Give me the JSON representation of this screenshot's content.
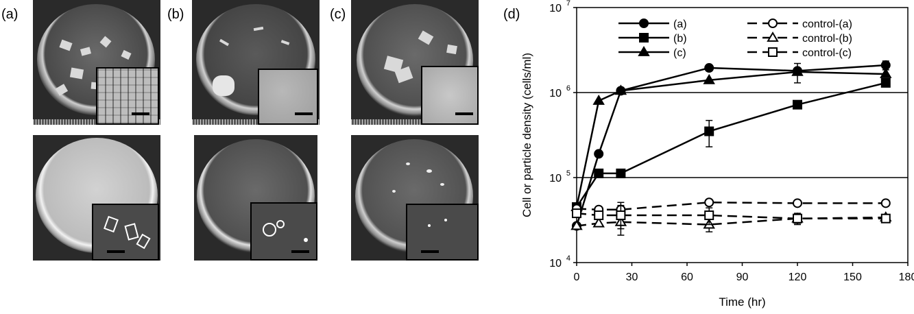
{
  "panels": {
    "a": "(a)",
    "b": "(b)",
    "c": "(c)",
    "d": "(d)"
  },
  "photo_icons": {
    "top": "petri-dish-with-gel-photo",
    "bottom": "petri-dish-control-photo",
    "inset": "microscope-inset"
  },
  "chart_data": {
    "type": "line",
    "xlabel": "Time (hr)",
    "ylabel": "Cell or particle density (cells/ml)",
    "xlim": [
      0,
      180
    ],
    "x_ticks": [
      "0",
      "30",
      "60",
      "90",
      "120",
      "150",
      "180"
    ],
    "y_scale": "log",
    "ylim": [
      10000,
      10000000
    ],
    "y_tick_base": "10",
    "y_tick_exponents": [
      "4",
      "5",
      "6",
      "7"
    ],
    "grid": "horizontal lines at 10^5 and 10^6",
    "legend_placement": "top",
    "series": [
      {
        "name": "(a)",
        "marker": "filled-circle",
        "line": "solid",
        "x": [
          0,
          12,
          24,
          72,
          120,
          168
        ],
        "y": [
          27000,
          190000,
          1050000,
          1950000,
          1800000,
          2100000
        ],
        "err": [
          0,
          0,
          0,
          0,
          0,
          250000
        ]
      },
      {
        "name": "(b)",
        "marker": "filled-square",
        "line": "solid",
        "x": [
          0,
          12,
          24,
          72,
          120,
          168
        ],
        "y": [
          45000,
          112000,
          112000,
          350000,
          720000,
          1300000
        ],
        "err": [
          0,
          0,
          12000,
          120000,
          0,
          0
        ]
      },
      {
        "name": "(c)",
        "marker": "filled-triangle",
        "line": "solid",
        "x": [
          0,
          12,
          24,
          72,
          120,
          168
        ],
        "y": [
          45000,
          800000,
          1050000,
          1400000,
          1750000,
          1650000
        ],
        "err": [
          0,
          0,
          0,
          0,
          450000,
          0
        ]
      },
      {
        "name": "control-(a)",
        "marker": "open-circle",
        "line": "dashed",
        "x": [
          0,
          12,
          24,
          72,
          120,
          168
        ],
        "y": [
          43000,
          42000,
          42000,
          51000,
          50000,
          50000
        ],
        "err": [
          0,
          0,
          5000,
          0,
          0,
          0
        ]
      },
      {
        "name": "control-(b)",
        "marker": "open-triangle",
        "line": "dashed",
        "x": [
          0,
          12,
          24,
          72,
          120,
          168
        ],
        "y": [
          27000,
          29000,
          30000,
          28000,
          33000,
          34000
        ],
        "err": [
          0,
          0,
          5000,
          5000,
          5000,
          0
        ]
      },
      {
        "name": "control-(c)",
        "marker": "open-square",
        "line": "dashed",
        "x": [
          0,
          12,
          24,
          72,
          120,
          168
        ],
        "y": [
          38000,
          36000,
          36000,
          36000,
          33000,
          33000
        ],
        "err": [
          0,
          0,
          15000,
          8000,
          4000,
          0
        ]
      }
    ]
  }
}
